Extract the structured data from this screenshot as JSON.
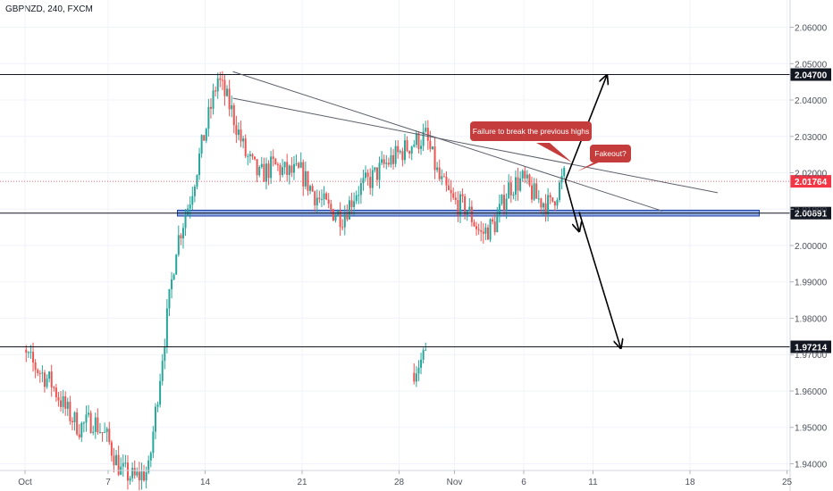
{
  "header": {
    "symbol_line": "GBPNZD, 240, FXCM"
  },
  "colors": {
    "up": "#26a69a",
    "down": "#ef5350",
    "grid": "#f0f3fa",
    "axis_text": "#50535e",
    "line": "#131722",
    "zone_fill": "#6a8fd8",
    "zone_stroke": "#1c3fa8",
    "callout": "#c43c3c",
    "price_line": "#f23645"
  },
  "chart_data": {
    "type": "candlestick",
    "title": "",
    "symbol": "GBPNZD",
    "timeframe": "240",
    "source": "FXCM",
    "ylim": [
      1.9325,
      2.0675
    ],
    "y_ticks": [
      "2.06000",
      "2.05000",
      "2.04000",
      "2.03000",
      "2.02000",
      "2.01000",
      "2.00000",
      "1.99000",
      "1.98000",
      "1.97000",
      "1.96000",
      "1.95000",
      "1.94000"
    ],
    "x_ticks": [
      "Oct",
      "7",
      "14",
      "21",
      "28",
      "Nov",
      "6",
      "11",
      "18",
      "25"
    ],
    "current_price": {
      "value": 2.01764,
      "label": "2.01764"
    },
    "horizontal_levels": [
      {
        "value": 2.047,
        "label": "2.04700"
      },
      {
        "value": 2.00891,
        "label": "2.00891"
      },
      {
        "value": 1.97214,
        "label": "1.97214"
      }
    ],
    "support_zone": {
      "from_date": "Oct 12",
      "to_date": "Nov 23",
      "low": 2.0081,
      "high": 2.0097
    },
    "trendlines": [
      {
        "from": [
          "Oct 16",
          2.0478
        ],
        "to": [
          "Nov 16",
          2.0095
        ]
      },
      {
        "from": [
          "Oct 16",
          2.0405
        ],
        "to": [
          "Nov 20",
          2.0145
        ]
      }
    ],
    "annotations": [
      {
        "text": "Failure to break the previous highs",
        "type": "callout"
      },
      {
        "text": "Fakeout?",
        "type": "callout"
      }
    ],
    "scenario_arrows": [
      {
        "from": [
          "Nov 9",
          2.0178
        ],
        "to": [
          "Nov 12",
          2.0468
        ]
      },
      {
        "from": [
          "Nov 9",
          2.0178
        ],
        "to": [
          "Nov 10",
          2.0039
        ]
      },
      {
        "from": [
          "Nov 10",
          2.0092
        ],
        "to": [
          "Nov 13",
          1.9718
        ]
      }
    ],
    "price_path_daily": {
      "dates": [
        "Sep 30",
        "Oct 1",
        "Oct 2",
        "Oct 3",
        "Oct 4",
        "Oct 5",
        "Oct 6",
        "Oct 7",
        "Oct 8",
        "Oct 9",
        "Oct 10",
        "Oct 11",
        "Oct 12",
        "Oct 13",
        "Oct 14",
        "Oct 15",
        "Oct 16",
        "Oct 17",
        "Oct 18",
        "Oct 19",
        "Oct 20",
        "Oct 21",
        "Oct 22",
        "Oct 23",
        "Oct 24",
        "Oct 25",
        "Oct 26",
        "Oct 27",
        "Oct 28",
        "Oct 29",
        "Oct 30",
        "Oct 31",
        "Nov 1",
        "Nov 2",
        "Nov 3",
        "Nov 4",
        "Nov 5",
        "Nov 6",
        "Nov 7",
        "Nov 8",
        "Nov 9"
      ],
      "close": [
        1.965,
        1.97,
        1.966,
        1.962,
        1.955,
        1.95,
        1.952,
        1.947,
        1.938,
        1.936,
        1.938,
        1.97,
        2.0,
        2.013,
        2.03,
        2.046,
        2.037,
        2.025,
        2.019,
        2.022,
        2.02,
        2.02,
        2.014,
        2.01,
        2.008,
        2.015,
        2.018,
        2.022,
        2.025,
        2.028,
        2.03,
        2.018,
        2.012,
        2.01,
        2.003,
        2.006,
        2.016,
        2.018,
        2.013,
        2.011,
        2.019
      ]
    }
  }
}
